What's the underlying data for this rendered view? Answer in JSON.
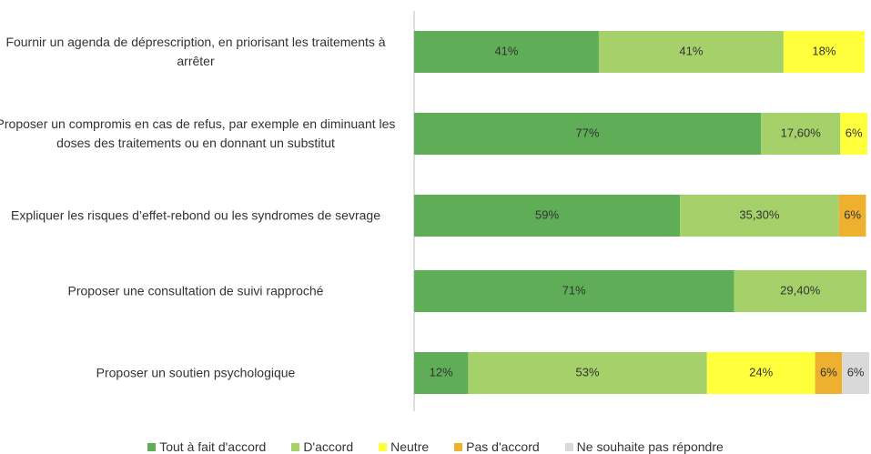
{
  "chart_data": {
    "type": "stacked-bar-horizontal",
    "categories": [
      "Fournir un agenda de déprescription, en priorisant les traitements à arrêter",
      "Proposer un compromis en cas de refus, par exemple en diminuant les doses des traitements ou en donnant un substitut",
      "Expliquer les risques d’effet-rebond ou les syndromes de sevrage",
      "Proposer une consultation de suivi rapproché",
      "Proposer un soutien psychologique"
    ],
    "series": [
      {
        "name": "Tout à fait d'accord",
        "color": "#5fad56",
        "values": [
          41,
          77,
          59,
          71,
          12
        ],
        "value_labels": [
          "41%",
          "77%",
          "59%",
          "71%",
          "12%"
        ]
      },
      {
        "name": "D'accord",
        "color": "#a6d16a",
        "values": [
          41,
          17.6,
          35.3,
          29.4,
          53
        ],
        "value_labels": [
          "41%",
          "17,60%",
          "35,30%",
          "29,40%",
          "53%"
        ]
      },
      {
        "name": "Neutre",
        "color": "#ffff3c",
        "values": [
          18,
          6,
          null,
          null,
          24
        ],
        "value_labels": [
          "18%",
          "6%",
          null,
          null,
          "24%"
        ]
      },
      {
        "name": "Pas d'accord",
        "color": "#eeb12f",
        "values": [
          null,
          null,
          6,
          null,
          6
        ],
        "value_labels": [
          null,
          null,
          "6%",
          null,
          "6%"
        ]
      },
      {
        "name": "Ne souhaite pas répondre",
        "color": "#d9d9d9",
        "values": [
          null,
          null,
          null,
          null,
          6
        ],
        "value_labels": [
          null,
          null,
          null,
          null,
          "6%"
        ]
      }
    ],
    "legend": "bottom"
  }
}
